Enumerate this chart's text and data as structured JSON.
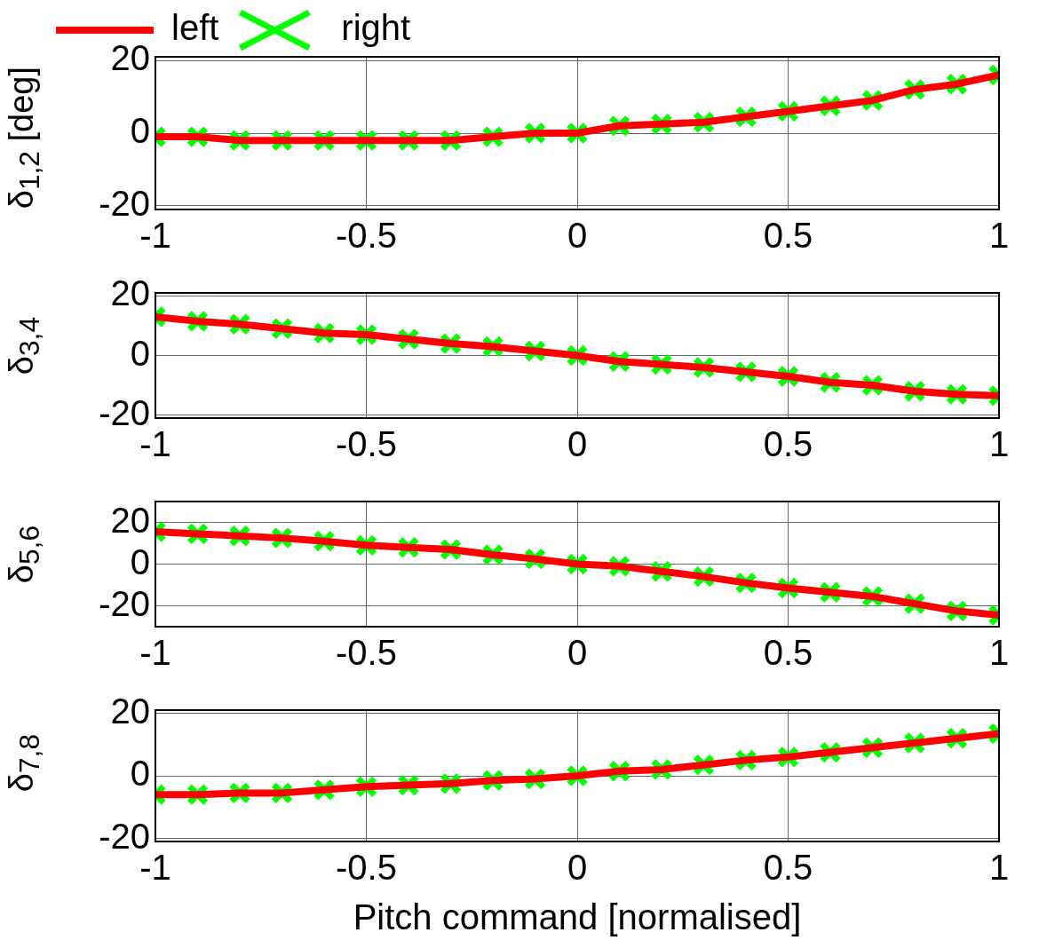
{
  "chart_data": [
    {
      "type": "line",
      "ylabel": "δ$_{1,2}$ [deg]",
      "x": [
        -1,
        -0.9,
        -0.8,
        -0.7,
        -0.6,
        -0.5,
        -0.4,
        -0.3,
        -0.2,
        -0.1,
        0,
        0.1,
        0.2,
        0.3,
        0.4,
        0.5,
        0.6,
        0.7,
        0.8,
        0.9,
        1
      ],
      "xlim": [
        -1,
        1
      ],
      "xticks": [
        -1,
        -0.5,
        0,
        0.5,
        1
      ],
      "ylim": [
        -21,
        21
      ],
      "yticks": [
        -20,
        0,
        20
      ],
      "grid": true,
      "legend": "top left",
      "series": [
        {
          "name": "left",
          "type": "line",
          "color": "#ff0000",
          "marker": "none",
          "line_style": "solid",
          "values": [
            -1,
            -1,
            -2,
            -2,
            -2,
            -2,
            -2,
            -2,
            -1,
            0,
            0,
            2,
            2.5,
            3,
            4.5,
            6,
            7.5,
            9,
            12,
            13.5,
            16
          ]
        },
        {
          "name": "right",
          "type": "scatter",
          "color": "#00ff00",
          "marker": "cross",
          "values": [
            -1,
            -1,
            -2,
            -2,
            -2,
            -2,
            -2,
            -2,
            -1,
            0,
            0,
            2,
            2.5,
            3,
            4.5,
            6,
            7.5,
            9,
            12,
            13.5,
            16
          ]
        }
      ]
    },
    {
      "type": "line",
      "ylabel": "δ$_{3,4}$",
      "x": [
        -1,
        -0.9,
        -0.8,
        -0.7,
        -0.6,
        -0.5,
        -0.4,
        -0.3,
        -0.2,
        -0.1,
        0,
        0.1,
        0.2,
        0.3,
        0.4,
        0.5,
        0.6,
        0.7,
        0.8,
        0.9,
        1
      ],
      "xlim": [
        -1,
        1
      ],
      "xticks": [
        -1,
        -0.5,
        0,
        0.5,
        1
      ],
      "ylim": [
        -21,
        21
      ],
      "yticks": [
        -20,
        0,
        20
      ],
      "grid": true,
      "series": [
        {
          "type": "line",
          "color": "#ff0000",
          "marker": "none",
          "line_style": "solid",
          "values": [
            13,
            11.5,
            10.5,
            9,
            7.5,
            7,
            5.5,
            4,
            3,
            1.5,
            0,
            -2,
            -3,
            -4,
            -5.5,
            -7,
            -9,
            -10,
            -12,
            -13,
            -13.5
          ]
        },
        {
          "type": "scatter",
          "color": "#00ff00",
          "marker": "cross",
          "values": [
            13,
            11.5,
            10.5,
            9,
            7.5,
            7,
            5.5,
            4,
            3,
            1.5,
            0,
            -2,
            -3,
            -4,
            -5.5,
            -7,
            -9,
            -10,
            -12,
            -13,
            -13.5
          ]
        }
      ]
    },
    {
      "type": "line",
      "ylabel": "δ$_{5,6}$",
      "x": [
        -1,
        -0.9,
        -0.8,
        -0.7,
        -0.6,
        -0.5,
        -0.4,
        -0.3,
        -0.2,
        -0.1,
        0,
        0.1,
        0.2,
        0.3,
        0.4,
        0.5,
        0.6,
        0.7,
        0.8,
        0.9,
        1
      ],
      "xlim": [
        -1,
        1
      ],
      "xticks": [
        -1,
        -0.5,
        0,
        0.5,
        1
      ],
      "ylim": [
        -30,
        30
      ],
      "yticks": [
        -20,
        0,
        20
      ],
      "grid": true,
      "series": [
        {
          "type": "line",
          "color": "#ff0000",
          "marker": "none",
          "line_style": "solid",
          "values": [
            15.5,
            14.5,
            13.5,
            12.5,
            11,
            9,
            8,
            7,
            4.5,
            2.5,
            0,
            -1,
            -3.5,
            -6,
            -9,
            -11.5,
            -13.5,
            -15.5,
            -19,
            -22.5,
            -24.5
          ]
        },
        {
          "type": "scatter",
          "color": "#00ff00",
          "marker": "cross",
          "values": [
            15.5,
            14.5,
            13.5,
            12.5,
            11,
            9,
            8,
            7,
            4.5,
            2.5,
            0,
            -1,
            -3.5,
            -6,
            -9,
            -11.5,
            -13.5,
            -15.5,
            -19,
            -22.5,
            -24.5
          ]
        }
      ]
    },
    {
      "type": "line",
      "ylabel": "δ$_{7,8}$",
      "xlabel": "Pitch command [normalised]",
      "x": [
        -1,
        -0.9,
        -0.8,
        -0.7,
        -0.6,
        -0.5,
        -0.4,
        -0.3,
        -0.2,
        -0.1,
        0,
        0.1,
        0.2,
        0.3,
        0.4,
        0.5,
        0.6,
        0.7,
        0.8,
        0.9,
        1
      ],
      "xlim": [
        -1,
        1
      ],
      "xticks": [
        -1,
        -0.5,
        0,
        0.5,
        1
      ],
      "ylim": [
        -21,
        21
      ],
      "yticks": [
        -20,
        0,
        20
      ],
      "grid": true,
      "series": [
        {
          "type": "line",
          "color": "#ff0000",
          "marker": "none",
          "line_style": "solid",
          "values": [
            -6,
            -6,
            -5.5,
            -5.5,
            -4.5,
            -3.5,
            -3,
            -2.5,
            -1.5,
            -1,
            0,
            1.5,
            2,
            3.5,
            5,
            6,
            7.5,
            9,
            10.5,
            12,
            13.5
          ]
        },
        {
          "type": "scatter",
          "color": "#00ff00",
          "marker": "cross",
          "values": [
            -6,
            -6,
            -5.5,
            -5.5,
            -4.5,
            -3.5,
            -3,
            -2.5,
            -1.5,
            -1,
            0,
            1.5,
            2,
            3.5,
            5,
            6,
            7.5,
            9,
            10.5,
            12,
            13.5
          ]
        }
      ]
    }
  ]
}
